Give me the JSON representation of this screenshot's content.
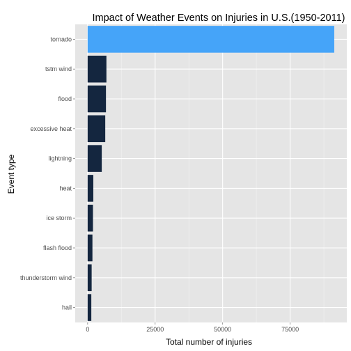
{
  "chart_data": {
    "type": "bar",
    "orientation": "horizontal",
    "title": "Impact of Weather Events on Injuries in U.S.(1950-2011)",
    "xlabel": "Total number of injuries",
    "ylabel": "Event type",
    "categories": [
      "tornado",
      "tstm wind",
      "flood",
      "excessive heat",
      "lightning",
      "heat",
      "ice storm",
      "flash flood",
      "thunderstorm wind",
      "hail"
    ],
    "values": [
      91346,
      6957,
      6789,
      6525,
      5230,
      2100,
      1975,
      1777,
      1488,
      1361
    ],
    "xlim": [
      -4600,
      96000
    ],
    "xticks": [
      0,
      25000,
      50000,
      75000
    ],
    "xtick_labels": [
      "0",
      "25000",
      "50000",
      "75000"
    ],
    "grid": true,
    "legend": "none",
    "colors": {
      "highlight": "#45a4f9",
      "bar": "#14263f",
      "panel": "#e5e5e5",
      "grid_major": "#ffffff",
      "grid_minor": "#f2f2f2"
    }
  }
}
